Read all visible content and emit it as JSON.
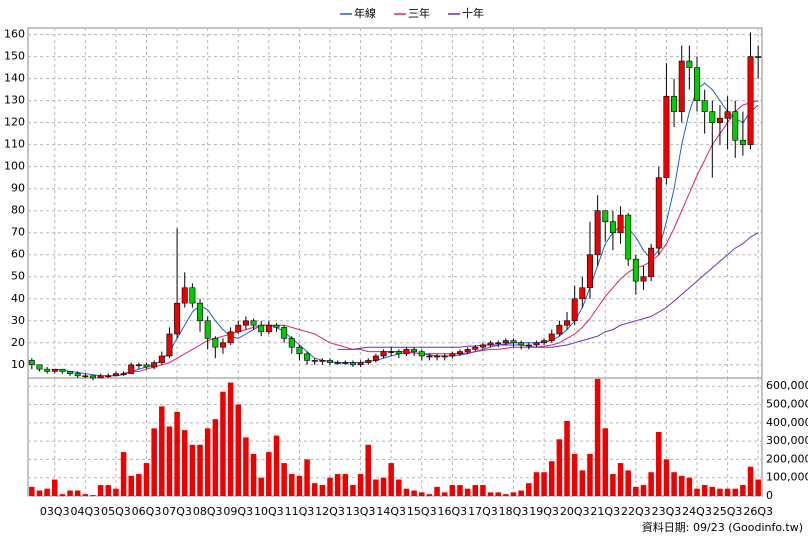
{
  "chart_data": {
    "type": "candlestick",
    "categories": [
      null,
      null,
      null,
      "03Q3",
      null,
      null,
      null,
      "04Q3",
      null,
      null,
      null,
      "05Q3",
      null,
      null,
      null,
      "06Q3",
      null,
      null,
      null,
      "07Q3",
      null,
      null,
      null,
      "08Q3",
      null,
      null,
      null,
      "09Q3",
      null,
      null,
      null,
      "10Q3",
      null,
      null,
      null,
      "11Q3",
      null,
      null,
      null,
      "12Q3",
      null,
      null,
      null,
      "13Q3",
      null,
      null,
      null,
      "14Q3",
      null,
      null,
      null,
      "15Q3",
      null,
      null,
      null,
      "16Q3",
      null,
      null,
      null,
      "17Q3",
      null,
      null,
      null,
      "18Q3",
      null,
      null,
      null,
      "19Q3",
      null,
      null,
      null,
      "20Q3",
      null,
      null,
      null,
      "21Q3",
      null,
      null,
      null,
      "22Q3",
      null,
      null,
      null,
      "23Q3",
      null,
      null,
      null,
      "24Q3",
      null,
      null,
      null,
      "25Q3",
      null,
      null,
      null,
      "26Q3"
    ],
    "open": [
      12,
      10,
      8,
      7,
      8,
      7,
      6,
      5,
      5,
      4,
      5,
      5,
      6,
      6,
      10,
      10,
      9,
      11,
      14,
      24,
      38,
      45,
      38,
      30,
      22,
      18,
      20,
      25,
      28,
      30,
      28,
      25,
      28,
      27,
      22,
      18,
      15,
      12,
      12,
      12,
      11,
      11,
      11,
      10,
      11,
      12,
      14,
      16,
      16,
      15,
      17,
      16,
      14,
      14,
      14,
      14,
      15,
      16,
      17,
      18,
      19,
      20,
      20,
      21,
      20,
      19,
      19,
      20,
      21,
      24,
      28,
      30,
      40,
      45,
      60,
      80,
      75,
      70,
      78,
      58,
      48,
      50,
      63,
      95,
      132,
      125,
      148,
      145,
      130,
      125,
      120,
      122,
      125,
      112,
      110,
      150
    ],
    "high": [
      13,
      10,
      9,
      8,
      8,
      7,
      7,
      6,
      5,
      6,
      6,
      7,
      7,
      11,
      11,
      11,
      12,
      16,
      27,
      72,
      52,
      47,
      40,
      32,
      23,
      22,
      27,
      30,
      32,
      31,
      30,
      30,
      29,
      28,
      23,
      19,
      16,
      13,
      13,
      13,
      12,
      12,
      12,
      12,
      13,
      15,
      17,
      18,
      17,
      18,
      18,
      17,
      15,
      15,
      15,
      16,
      17,
      18,
      19,
      20,
      21,
      21,
      22,
      22,
      21,
      20,
      21,
      22,
      26,
      30,
      34,
      46,
      50,
      75,
      87,
      80,
      80,
      82,
      79,
      60,
      55,
      65,
      100,
      147,
      140,
      155,
      155,
      150,
      135,
      130,
      128,
      132,
      130,
      125,
      161,
      155
    ],
    "low": [
      8,
      7,
      6,
      6,
      6,
      5,
      4,
      4,
      3,
      4,
      4,
      5,
      5,
      6,
      8,
      8,
      8,
      10,
      13,
      22,
      36,
      36,
      25,
      17,
      13,
      15,
      19,
      24,
      26,
      26,
      23,
      24,
      25,
      20,
      15,
      12,
      10,
      10,
      10,
      10,
      10,
      10,
      9,
      9,
      10,
      11,
      13,
      14,
      13,
      14,
      14,
      12,
      12,
      12,
      12,
      13,
      14,
      15,
      16,
      17,
      18,
      18,
      19,
      18,
      17,
      17,
      18,
      19,
      20,
      23,
      26,
      28,
      36,
      40,
      55,
      66,
      62,
      65,
      55,
      42,
      44,
      48,
      60,
      92,
      118,
      120,
      135,
      125,
      115,
      95,
      110,
      108,
      104,
      105,
      108,
      140
    ],
    "close": [
      10,
      8,
      7,
      8,
      7,
      6,
      5,
      5,
      4,
      5,
      5,
      6,
      6,
      10,
      10,
      9,
      11,
      14,
      24,
      38,
      45,
      38,
      30,
      22,
      18,
      20,
      25,
      28,
      30,
      28,
      25,
      28,
      27,
      22,
      18,
      15,
      12,
      12,
      12,
      11,
      11,
      11,
      10,
      11,
      12,
      14,
      16,
      16,
      15,
      17,
      16,
      14,
      14,
      14,
      14,
      15,
      16,
      17,
      18,
      19,
      20,
      20,
      21,
      20,
      19,
      19,
      20,
      21,
      24,
      28,
      30,
      40,
      45,
      60,
      80,
      75,
      70,
      78,
      58,
      48,
      50,
      63,
      95,
      132,
      125,
      148,
      145,
      130,
      125,
      120,
      122,
      125,
      112,
      110,
      150,
      150
    ],
    "up_color": "#ee0000",
    "down_color": "#00cc00",
    "series": [
      {
        "name": "年線",
        "color": "#1f5fd0",
        "values": [
          null,
          null,
          null,
          8,
          7.5,
          7,
          6.5,
          6,
          5.5,
          5,
          5,
          5,
          5.5,
          7,
          8,
          9,
          10,
          12,
          16,
          22,
          28,
          34,
          37,
          35,
          30,
          26,
          23,
          22,
          24,
          26,
          28,
          28,
          27,
          25,
          22,
          19,
          16,
          13,
          12,
          11.5,
          11,
          11,
          11,
          11,
          11.5,
          12,
          13,
          14,
          15,
          15.5,
          15.5,
          15,
          14.5,
          14,
          14,
          14,
          14.5,
          15,
          16,
          17,
          18,
          19,
          19.5,
          20,
          20,
          20,
          20,
          20.5,
          21,
          23,
          26,
          30,
          36,
          45,
          55,
          65,
          70,
          73,
          72,
          68,
          62,
          58,
          62,
          75,
          90,
          110,
          125,
          135,
          138,
          135,
          130,
          125,
          122,
          120,
          125,
          128
        ]
      },
      {
        "name": "三年",
        "color": "#e0206a",
        "values": [
          null,
          null,
          null,
          null,
          null,
          null,
          null,
          null,
          null,
          null,
          null,
          null,
          6,
          7,
          7,
          8,
          9,
          10,
          11,
          13,
          15,
          17,
          19,
          21,
          22,
          23,
          24,
          25,
          26,
          27,
          28,
          28,
          28,
          28,
          27,
          26,
          25,
          24,
          22,
          20,
          19,
          18,
          17,
          17,
          16,
          16,
          16,
          16,
          16,
          16,
          15.5,
          15,
          15,
          15,
          15,
          15,
          15,
          15.5,
          16,
          16.5,
          17,
          17,
          17.5,
          18,
          18,
          18,
          18,
          18.5,
          19,
          20,
          22,
          24,
          27,
          31,
          36,
          41,
          45,
          49,
          52,
          54,
          55,
          57,
          60,
          65,
          72,
          80,
          88,
          96,
          103,
          110,
          115,
          120,
          125,
          128,
          129,
          130
        ]
      },
      {
        "name": "十年",
        "color": "#6a2ccc",
        "values": [
          null,
          null,
          null,
          null,
          null,
          null,
          null,
          null,
          null,
          null,
          null,
          null,
          null,
          null,
          null,
          null,
          null,
          null,
          null,
          null,
          null,
          null,
          null,
          null,
          null,
          null,
          null,
          null,
          null,
          null,
          null,
          null,
          null,
          null,
          null,
          null,
          null,
          null,
          null,
          null,
          17,
          17,
          17,
          17.5,
          18,
          18,
          18,
          18,
          18,
          18,
          18,
          18,
          18,
          18,
          18,
          18,
          18,
          18.5,
          18.5,
          19,
          19,
          19,
          19,
          19,
          19,
          18.5,
          18,
          18,
          18,
          18.5,
          19,
          20,
          21,
          22,
          23,
          25,
          26,
          28,
          29,
          30,
          31,
          32,
          34,
          36,
          39,
          42,
          45,
          48,
          51,
          54,
          57,
          60,
          63,
          65,
          68,
          70
        ]
      }
    ],
    "ylim": [
      4,
      163
    ],
    "yticks": [
      10,
      20,
      30,
      40,
      50,
      60,
      70,
      80,
      90,
      100,
      110,
      120,
      130,
      140,
      150,
      160
    ],
    "grid": true,
    "volume": {
      "color": "#ee0000",
      "values": [
        50000,
        30000,
        40000,
        90000,
        10000,
        30000,
        30000,
        10000,
        5000,
        60000,
        60000,
        40000,
        240000,
        110000,
        120000,
        180000,
        370000,
        490000,
        380000,
        460000,
        360000,
        280000,
        280000,
        370000,
        420000,
        570000,
        620000,
        500000,
        320000,
        230000,
        100000,
        240000,
        330000,
        180000,
        120000,
        110000,
        200000,
        70000,
        60000,
        100000,
        120000,
        120000,
        60000,
        120000,
        280000,
        90000,
        100000,
        180000,
        90000,
        40000,
        30000,
        20000,
        10000,
        50000,
        20000,
        60000,
        60000,
        40000,
        60000,
        60000,
        20000,
        20000,
        10000,
        20000,
        30000,
        70000,
        130000,
        130000,
        190000,
        310000,
        410000,
        230000,
        140000,
        230000,
        640000,
        370000,
        120000,
        180000,
        140000,
        50000,
        60000,
        130000,
        350000,
        200000,
        130000,
        110000,
        100000,
        40000,
        60000,
        50000,
        40000,
        40000,
        40000,
        60000,
        160000,
        90000
      ],
      "ylim": [
        0,
        645000
      ],
      "yticks": [
        0,
        {
          "value": 100000,
          "label": "100,000"
        },
        {
          "value": 200000,
          "label": "200,000"
        },
        {
          "value": 300000,
          "label": "300,000"
        },
        {
          "value": 400000,
          "label": "400,000"
        },
        {
          "value": 500000,
          "label": "500,000"
        },
        {
          "value": 600000,
          "label": "600,000"
        }
      ]
    },
    "footer": "資料日期: 09/23  (Goodinfo.tw)"
  }
}
